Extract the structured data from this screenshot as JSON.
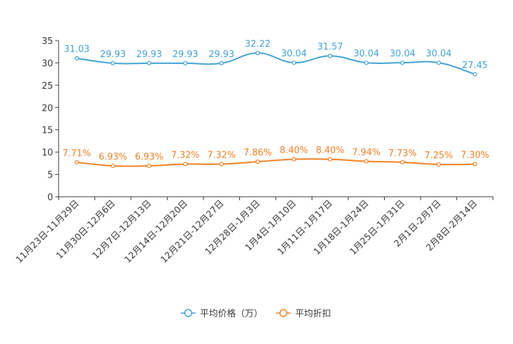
{
  "chart_data": {
    "type": "line",
    "categories": [
      "11月23日-11月29日",
      "11月30日-12月6日",
      "12月7日-12月13日",
      "12月14日-12月20日",
      "12月21日-12月27日",
      "12月28日-1月3日",
      "1月4日-1月10日",
      "1月11日-1月17日",
      "1月18日-1月24日",
      "1月25日-1月31日",
      "2月1日-2月7日",
      "2月8日-2月14日"
    ],
    "series": [
      {
        "name": "平均价格（万）",
        "color": "#3b9fd1",
        "values": [
          31.03,
          29.93,
          29.93,
          29.93,
          29.93,
          32.22,
          30.04,
          31.57,
          30.04,
          30.04,
          30.04,
          27.45
        ],
        "labels": [
          "31.03",
          "29.93",
          "29.93",
          "29.93",
          "29.93",
          "32.22",
          "30.04",
          "31.57",
          "30.04",
          "30.04",
          "30.04",
          "27.45"
        ]
      },
      {
        "name": "平均折扣",
        "color": "#f07d1c",
        "values": [
          7.71,
          6.93,
          6.93,
          7.32,
          7.32,
          7.86,
          8.4,
          8.4,
          7.94,
          7.73,
          7.25,
          7.3
        ],
        "labels": [
          "7.71%",
          "6.93%",
          "6.93%",
          "7.32%",
          "7.32%",
          "7.86%",
          "8.40%",
          "8.40%",
          "7.94%",
          "7.73%",
          "7.25%",
          "7.30%"
        ]
      }
    ],
    "ylim": [
      0,
      35
    ],
    "yticks": [
      0,
      5,
      10,
      15,
      20,
      25,
      30,
      35
    ],
    "title": "",
    "xlabel": "",
    "ylabel": "",
    "grid": false,
    "legend_position": "bottom-center"
  }
}
